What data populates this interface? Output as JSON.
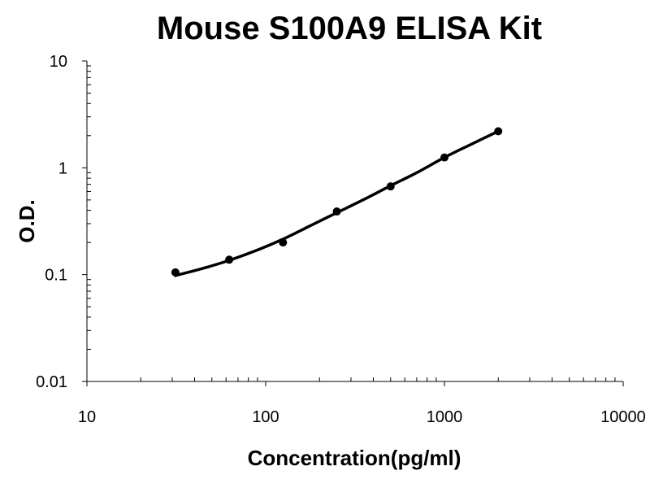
{
  "chart_data": {
    "type": "scatter",
    "title": "Mouse S100A9 ELISA Kit",
    "xlabel": "Concentration(pg/ml)",
    "ylabel": "O.D.",
    "x_scale": "log",
    "y_scale": "log",
    "xlim": [
      10,
      10000
    ],
    "ylim": [
      0.01,
      10
    ],
    "x_ticks": [
      "10",
      "100",
      "1000",
      "10000"
    ],
    "y_ticks": [
      "0.01",
      "0.1",
      "1",
      "10"
    ],
    "grid": false,
    "legend": "none",
    "series": [
      {
        "points": [
          {
            "x": 31.25,
            "y": 0.105
          },
          {
            "x": 62.5,
            "y": 0.138
          },
          {
            "x": 125,
            "y": 0.2
          },
          {
            "x": 250,
            "y": 0.39
          },
          {
            "x": 500,
            "y": 0.67
          },
          {
            "x": 1000,
            "y": 1.25
          },
          {
            "x": 2000,
            "y": 2.2
          }
        ],
        "fit_curve": [
          {
            "x": 31.25,
            "y": 0.098
          },
          {
            "x": 45,
            "y": 0.115
          },
          {
            "x": 62.5,
            "y": 0.136
          },
          {
            "x": 90,
            "y": 0.17
          },
          {
            "x": 125,
            "y": 0.215
          },
          {
            "x": 180,
            "y": 0.29
          },
          {
            "x": 250,
            "y": 0.38
          },
          {
            "x": 350,
            "y": 0.5
          },
          {
            "x": 500,
            "y": 0.68
          },
          {
            "x": 700,
            "y": 0.9
          },
          {
            "x": 1000,
            "y": 1.25
          },
          {
            "x": 1400,
            "y": 1.65
          },
          {
            "x": 2000,
            "y": 2.2
          }
        ]
      }
    ],
    "colors": {
      "marker": "#000000",
      "line": "#000000",
      "axis": "#000000"
    }
  }
}
